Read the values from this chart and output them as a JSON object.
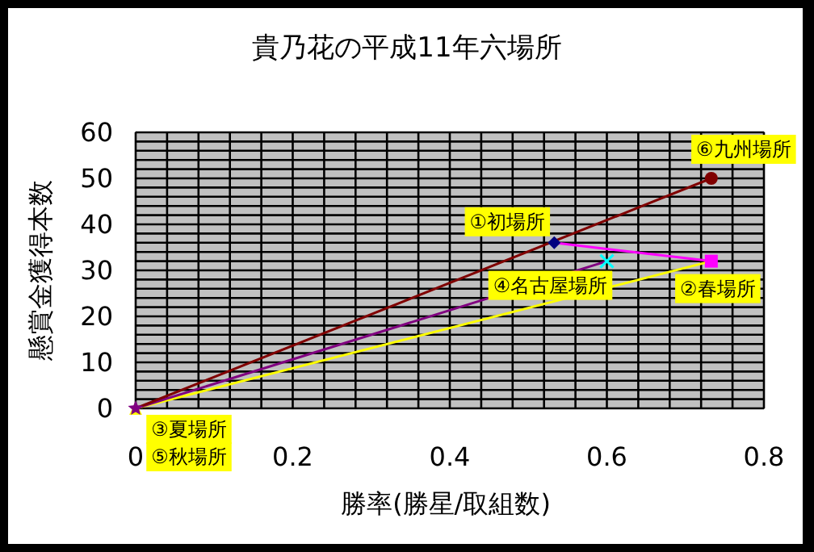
{
  "chart_data": {
    "type": "line",
    "title": "貴乃花の平成11年六場所",
    "xlabel": "勝率(勝星/取組数)",
    "ylabel": "懸賞金獲得本数",
    "xlim": [
      0,
      0.8
    ],
    "ylim": [
      0,
      60
    ],
    "xticks": [
      0,
      {
        "value": 0.04,
        "label": null
      },
      {
        "value": 0.08,
        "label": null
      },
      {
        "value": 0.12,
        "label": null
      },
      {
        "value": 0.16,
        "label": null
      },
      0.2,
      {
        "value": 0.24,
        "label": null
      },
      {
        "value": 0.28,
        "label": null
      },
      {
        "value": 0.32,
        "label": null
      },
      {
        "value": 0.36,
        "label": null
      },
      0.4,
      {
        "value": 0.44,
        "label": null
      },
      {
        "value": 0.48,
        "label": null
      },
      {
        "value": 0.52,
        "label": null
      },
      {
        "value": 0.56,
        "label": null
      },
      0.6,
      {
        "value": 0.64,
        "label": null
      },
      {
        "value": 0.68,
        "label": null
      },
      {
        "value": 0.72,
        "label": null
      },
      {
        "value": 0.76,
        "label": null
      },
      0.8
    ],
    "yticks": [
      0,
      {
        "value": 2,
        "label": null
      },
      {
        "value": 4,
        "label": null
      },
      {
        "value": 6,
        "label": null
      },
      {
        "value": 8,
        "label": null
      },
      10,
      {
        "value": 12,
        "label": null
      },
      {
        "value": 14,
        "label": null
      },
      {
        "value": 16,
        "label": null
      },
      {
        "value": 18,
        "label": null
      },
      20,
      {
        "value": 22,
        "label": null
      },
      {
        "value": 24,
        "label": null
      },
      {
        "value": 26,
        "label": null
      },
      {
        "value": 28,
        "label": null
      },
      30,
      {
        "value": 32,
        "label": null
      },
      {
        "value": 34,
        "label": null
      },
      {
        "value": 36,
        "label": null
      },
      {
        "value": 38,
        "label": null
      },
      40,
      {
        "value": 42,
        "label": null
      },
      {
        "value": 44,
        "label": null
      },
      {
        "value": 46,
        "label": null
      },
      {
        "value": 48,
        "label": null
      },
      50,
      {
        "value": 52,
        "label": null
      },
      {
        "value": 54,
        "label": null
      },
      {
        "value": 56,
        "label": null
      },
      {
        "value": 58,
        "label": null
      },
      60
    ],
    "grid": true,
    "series": [
      {
        "color": "#ff00ff",
        "marker": "none",
        "x": [
          0.533,
          0.733
        ],
        "values": [
          36,
          32
        ]
      },
      {
        "color": "#ffff00",
        "marker": "none",
        "x": [
          0,
          0.733
        ],
        "values": [
          0,
          32
        ]
      },
      {
        "color": "#800080",
        "marker": "none",
        "x": [
          0,
          0.6
        ],
        "values": [
          0,
          32
        ]
      },
      {
        "color": "#800000",
        "marker": "none",
        "x": [
          0,
          0.733
        ],
        "values": [
          0,
          50
        ]
      },
      {
        "type": "scatter",
        "color": "#000080",
        "marker": "diamond",
        "x": [
          0.533
        ],
        "values": [
          36
        ]
      },
      {
        "type": "scatter",
        "color": "#ff00ff",
        "marker": "square",
        "x": [
          0.733
        ],
        "values": [
          32
        ]
      },
      {
        "type": "scatter",
        "color": "#ffff00",
        "marker": "triangle",
        "x": [
          0
        ],
        "values": [
          0
        ]
      },
      {
        "type": "scatter",
        "color": "#00ffff",
        "marker": "cross",
        "x": [
          0.6
        ],
        "values": [
          32
        ]
      },
      {
        "type": "scatter",
        "color": "#800080",
        "marker": "star",
        "x": [
          0
        ],
        "values": [
          0
        ]
      },
      {
        "type": "scatter",
        "color": "#800000",
        "marker": "circle",
        "x": [
          0.733
        ],
        "values": [
          50
        ]
      }
    ],
    "annotations": [
      {
        "text": "①初場所",
        "x": 0.533,
        "y": 36
      },
      {
        "text": "②春場所",
        "x": 0.733,
        "y": 32
      },
      {
        "text": "③夏場所",
        "x": 0,
        "y": 0
      },
      {
        "text": "④名古屋場所",
        "x": 0.6,
        "y": 32
      },
      {
        "text": "⑤秋場所",
        "x": 0,
        "y": 0
      },
      {
        "text": "⑥九州場所",
        "x": 0.733,
        "y": 50
      }
    ]
  }
}
